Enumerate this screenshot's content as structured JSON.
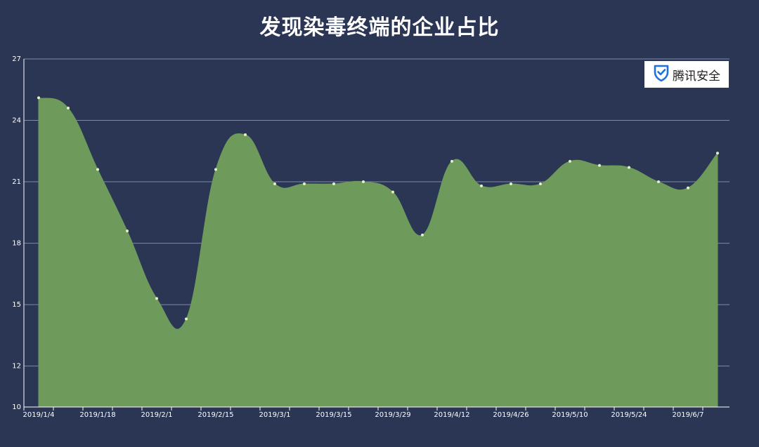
{
  "chart_data": {
    "type": "area",
    "title": "发现染毒终端的企业占比",
    "xlabel": "",
    "ylabel": "",
    "ylim": [
      10,
      27
    ],
    "yticks": [
      10,
      12,
      15,
      18,
      21,
      24,
      27
    ],
    "grid": true,
    "x_tick_labels": [
      "2019/1/4",
      "2019/1/18",
      "2019/2/1",
      "2019/2/15",
      "2019/3/1",
      "2019/3/15",
      "2019/3/29",
      "2019/4/12",
      "2019/4/26",
      "2019/5/10",
      "2019/5/24",
      "2019/6/7"
    ],
    "x": [
      "2019/1/4",
      "2019/1/11",
      "2019/1/18",
      "2019/1/25",
      "2019/2/1",
      "2019/2/8",
      "2019/2/15",
      "2019/2/22",
      "2019/3/1",
      "2019/3/8",
      "2019/3/15",
      "2019/3/22",
      "2019/3/29",
      "2019/4/5",
      "2019/4/12",
      "2019/4/19",
      "2019/4/26",
      "2019/5/3",
      "2019/5/10",
      "2019/5/17",
      "2019/5/24",
      "2019/5/31",
      "2019/6/7",
      "2019/6/14"
    ],
    "values": [
      25.1,
      24.6,
      21.6,
      18.6,
      15.3,
      14.3,
      21.6,
      23.3,
      20.9,
      20.9,
      20.9,
      21.0,
      20.5,
      18.4,
      22.0,
      20.8,
      20.9,
      20.9,
      22.0,
      21.8,
      21.7,
      21.0,
      20.7,
      22.4
    ],
    "fill_color": "#6e9b5c",
    "point_color": "#e6f0c8"
  },
  "brand": {
    "label": "腾讯安全",
    "icon": "shield-check-icon",
    "color": "#1e6fe0"
  }
}
